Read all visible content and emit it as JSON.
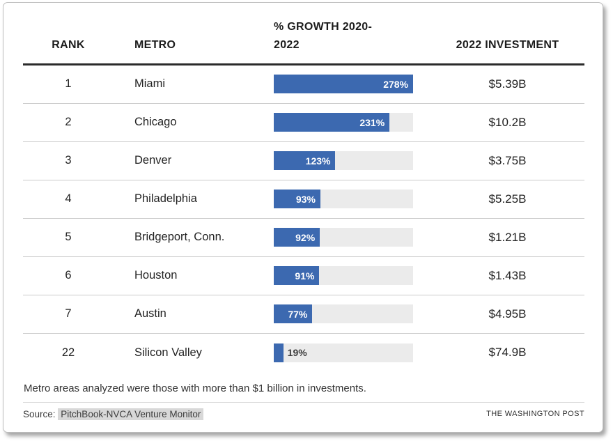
{
  "header": {
    "rank": "RANK",
    "metro": "METRO",
    "growth": "% GROWTH 2020-2022",
    "investment": "2022 INVESTMENT"
  },
  "rows": [
    {
      "rank": "1",
      "metro": "Miami",
      "growth_pct": 278,
      "growth_label": "278%",
      "label_inside": true,
      "investment": "$5.39B"
    },
    {
      "rank": "2",
      "metro": "Chicago",
      "growth_pct": 231,
      "growth_label": "231%",
      "label_inside": true,
      "investment": "$10.2B"
    },
    {
      "rank": "3",
      "metro": "Denver",
      "growth_pct": 123,
      "growth_label": "123%",
      "label_inside": true,
      "investment": "$3.75B"
    },
    {
      "rank": "4",
      "metro": "Philadelphia",
      "growth_pct": 93,
      "growth_label": "93%",
      "label_inside": true,
      "investment": "$5.25B"
    },
    {
      "rank": "5",
      "metro": "Bridgeport, Conn.",
      "growth_pct": 92,
      "growth_label": "92%",
      "label_inside": true,
      "investment": "$1.21B"
    },
    {
      "rank": "6",
      "metro": "Houston",
      "growth_pct": 91,
      "growth_label": "91%",
      "label_inside": true,
      "investment": "$1.43B"
    },
    {
      "rank": "7",
      "metro": "Austin",
      "growth_pct": 77,
      "growth_label": "77%",
      "label_inside": true,
      "investment": "$4.95B"
    },
    {
      "rank": "22",
      "metro": "Silicon Valley",
      "growth_pct": 19,
      "growth_label": "19%",
      "label_inside": false,
      "investment": "$74.9B"
    }
  ],
  "chart_data": {
    "type": "bar",
    "orientation": "horizontal",
    "categories": [
      "Miami",
      "Chicago",
      "Denver",
      "Philadelphia",
      "Bridgeport, Conn.",
      "Houston",
      "Austin",
      "Silicon Valley"
    ],
    "ranks": [
      1,
      2,
      3,
      4,
      5,
      6,
      7,
      22
    ],
    "values": [
      278,
      231,
      123,
      93,
      92,
      91,
      77,
      19
    ],
    "value_labels": [
      "278%",
      "231%",
      "123%",
      "93%",
      "92%",
      "91%",
      "77%",
      "19%"
    ],
    "series": [
      {
        "name": "% Growth 2020-2022",
        "values": [
          278,
          231,
          123,
          93,
          92,
          91,
          77,
          19
        ]
      },
      {
        "name": "2022 Investment",
        "values": [
          "$5.39B",
          "$10.2B",
          "$3.75B",
          "$5.25B",
          "$1.21B",
          "$1.43B",
          "$4.95B",
          "$74.9B"
        ]
      }
    ],
    "xlim": [
      0,
      278
    ],
    "grid": false,
    "legend": "none",
    "title": ""
  },
  "colors": {
    "bar": "#3c69b0",
    "track": "#ebebeb",
    "highlight": "#d8d8d8",
    "header_rule": "#2b2b2b",
    "row_rule": "#cbcbcb"
  },
  "footer": {
    "note": "Metro areas analyzed were those with more than $1 billion in investments.",
    "source_prefix": "Source:",
    "source_name": "PitchBook-NVCA Venture Monitor",
    "credit": "THE WASHINGTON POST"
  }
}
